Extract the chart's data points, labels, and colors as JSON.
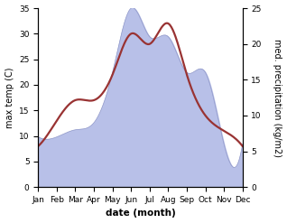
{
  "months": [
    "Jan",
    "Feb",
    "Mar",
    "Apr",
    "May",
    "Jun",
    "Jul",
    "Aug",
    "Sep",
    "Oct",
    "Nov",
    "Dec"
  ],
  "month_indices": [
    0,
    1,
    2,
    3,
    4,
    5,
    6,
    7,
    8,
    9,
    10,
    11
  ],
  "temperature": [
    8,
    13,
    17,
    17,
    22,
    30,
    28,
    32,
    22,
    14,
    11,
    8
  ],
  "precipitation": [
    7,
    7,
    8,
    9,
    16,
    25,
    21,
    21,
    16,
    16,
    6,
    6
  ],
  "temp_color": "#993333",
  "precip_fill_color": "#b8c0e8",
  "precip_line_color": "#9098c8",
  "temp_ylim": [
    0,
    35
  ],
  "precip_ylim": [
    0,
    25
  ],
  "temp_yticks": [
    0,
    5,
    10,
    15,
    20,
    25,
    30,
    35
  ],
  "precip_yticks": [
    0,
    5,
    10,
    15,
    20,
    25
  ],
  "xlabel": "date (month)",
  "ylabel_left": "max temp (C)",
  "ylabel_right": "med. precipitation (kg/m2)",
  "bg_color": "#ffffff",
  "line_width": 1.6,
  "font_size_ticks": 6.5,
  "font_size_ylabel": 7,
  "font_size_xlabel": 7.5
}
